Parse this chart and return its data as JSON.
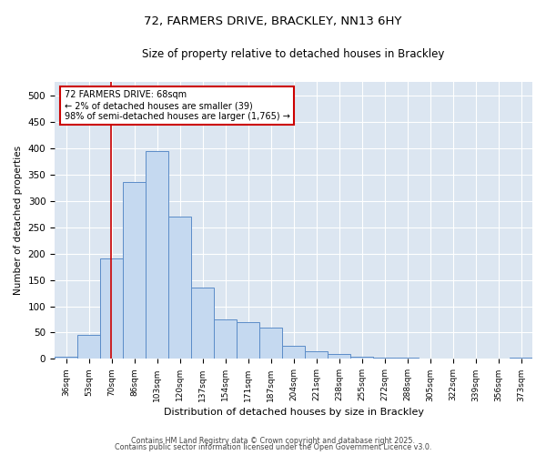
{
  "title1": "72, FARMERS DRIVE, BRACKLEY, NN13 6HY",
  "title2": "Size of property relative to detached houses in Brackley",
  "xlabel": "Distribution of detached houses by size in Brackley",
  "ylabel": "Number of detached properties",
  "categories": [
    "36sqm",
    "53sqm",
    "70sqm",
    "86sqm",
    "103sqm",
    "120sqm",
    "137sqm",
    "154sqm",
    "171sqm",
    "187sqm",
    "204sqm",
    "221sqm",
    "238sqm",
    "255sqm",
    "272sqm",
    "288sqm",
    "305sqm",
    "322sqm",
    "339sqm",
    "356sqm",
    "373sqm"
  ],
  "values": [
    5,
    45,
    190,
    335,
    395,
    270,
    135,
    75,
    70,
    60,
    25,
    15,
    10,
    5,
    2,
    2,
    0,
    0,
    0,
    0,
    2
  ],
  "bar_color": "#c5d9f0",
  "bar_edge_color": "#5b8cc8",
  "background_color": "#dce6f1",
  "grid_color": "#ffffff",
  "vline_color": "#cc0000",
  "vline_x": 1.97,
  "annotation_text": "72 FARMERS DRIVE: 68sqm\n← 2% of detached houses are smaller (39)\n98% of semi-detached houses are larger (1,765) →",
  "annotation_box_color": "#ffffff",
  "annotation_box_edge": "#cc0000",
  "footer1": "Contains HM Land Registry data © Crown copyright and database right 2025.",
  "footer2": "Contains public sector information licensed under the Open Government Licence v3.0.",
  "ylim": [
    0,
    525
  ],
  "yticks": [
    0,
    50,
    100,
    150,
    200,
    250,
    300,
    350,
    400,
    450,
    500
  ]
}
